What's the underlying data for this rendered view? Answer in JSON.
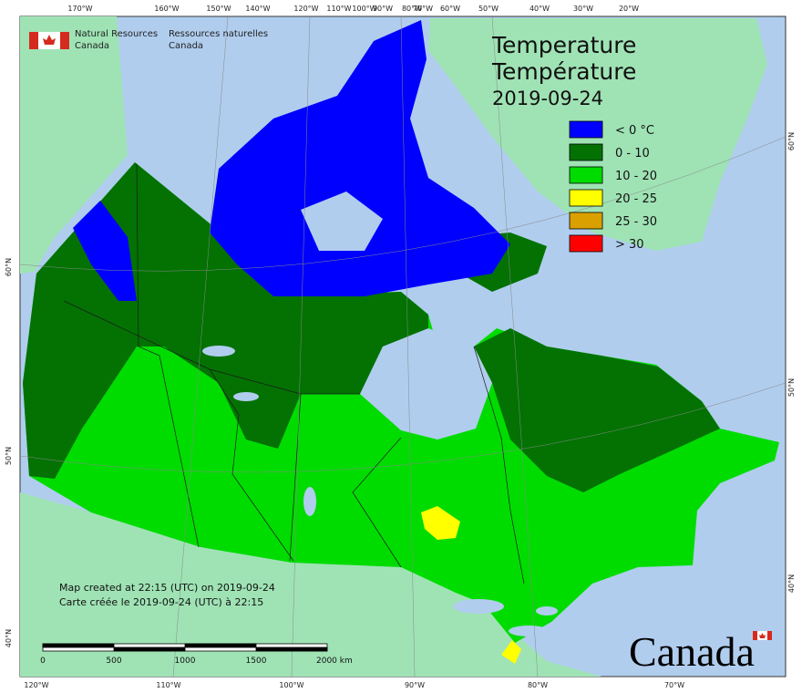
{
  "header": {
    "department_en": [
      "Natural Resources",
      "Canada"
    ],
    "department_fr": [
      "Ressources naturelles",
      "Canada"
    ]
  },
  "title": {
    "en": "Temperature",
    "fr": "Température",
    "date": "2019-09-24"
  },
  "legend": [
    {
      "label": "< 0 °C",
      "color": "#0000ff"
    },
    {
      "label": "0 - 10",
      "color": "#037203"
    },
    {
      "label": "10 - 20",
      "color": "#00dc00"
    },
    {
      "label": "20 - 25",
      "color": "#ffff00"
    },
    {
      "label": "25 - 30",
      "color": "#d9a000"
    },
    {
      "label": "> 30",
      "color": "#ff0000"
    }
  ],
  "graticule": {
    "top": [
      "170°W",
      "160°W",
      "150°W",
      "140°W",
      "120°W",
      "110°W",
      "100°W",
      "90°W",
      "80°W",
      "70°W",
      "60°W",
      "50°W",
      "40°W",
      "30°W",
      "20°W"
    ],
    "bottom": [
      "120°W",
      "110°W",
      "100°W",
      "90°W",
      "80°W",
      "70°W"
    ],
    "left": [
      "60°N",
      "50°N",
      "40°N"
    ],
    "right": [
      "60°N",
      "50°N",
      "40°N"
    ]
  },
  "notes": [
    "Map created at 22:15 (UTC) on 2019-09-24",
    "Carte créée le 2019-09-24 (UTC) à 22:15"
  ],
  "scale_bar": [
    "0",
    "500",
    "1000",
    "1500",
    "2000  km"
  ],
  "wordmark": "Canada"
}
